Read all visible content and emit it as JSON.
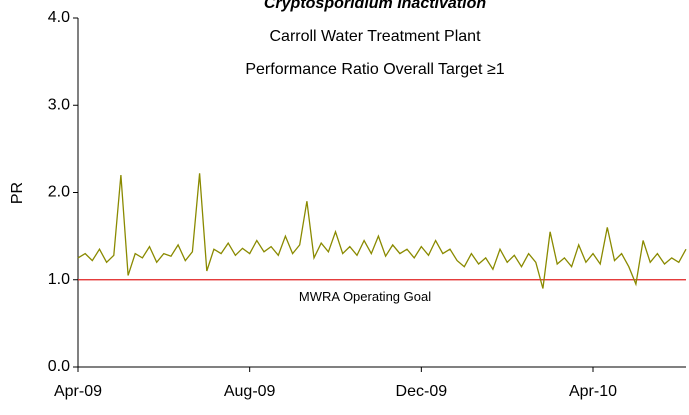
{
  "chart_data": {
    "type": "line",
    "title": "Cryptosporidium Inactivation",
    "subtitle": [
      "Carroll Water Treatment Plant",
      "Performance Ratio Overall Target ≥1"
    ],
    "y_label": "PR",
    "categories": [
      "Apr-09",
      null,
      null,
      null,
      null,
      null,
      null,
      null,
      null,
      null,
      null,
      null,
      null,
      null,
      null,
      null,
      null,
      null,
      null,
      null,
      null,
      null,
      null,
      null,
      "Aug-09",
      null,
      null,
      null,
      null,
      null,
      null,
      null,
      null,
      null,
      null,
      null,
      null,
      null,
      null,
      null,
      null,
      null,
      null,
      null,
      null,
      null,
      null,
      null,
      "Dec-09",
      null,
      null,
      null,
      null,
      null,
      null,
      null,
      null,
      null,
      null,
      null,
      null,
      null,
      null,
      null,
      null,
      null,
      null,
      null,
      null,
      null,
      null,
      null,
      "Apr-10",
      null,
      null,
      null,
      null,
      null,
      null,
      null,
      null,
      null,
      null,
      null,
      null,
      null
    ],
    "values": [
      1.25,
      1.3,
      1.22,
      1.35,
      1.2,
      1.28,
      2.2,
      1.05,
      1.3,
      1.25,
      1.38,
      1.2,
      1.3,
      1.27,
      1.4,
      1.22,
      1.32,
      2.22,
      1.1,
      1.35,
      1.3,
      1.42,
      1.28,
      1.36,
      1.3,
      1.45,
      1.32,
      1.38,
      1.28,
      1.5,
      1.3,
      1.4,
      1.9,
      1.25,
      1.42,
      1.32,
      1.55,
      1.3,
      1.38,
      1.28,
      1.45,
      1.3,
      1.5,
      1.27,
      1.4,
      1.3,
      1.35,
      1.25,
      1.38,
      1.28,
      1.45,
      1.3,
      1.35,
      1.22,
      1.15,
      1.3,
      1.18,
      1.25,
      1.12,
      1.35,
      1.2,
      1.28,
      1.15,
      1.3,
      1.2,
      0.9,
      1.55,
      1.18,
      1.25,
      1.15,
      1.4,
      1.2,
      1.3,
      1.18,
      1.6,
      1.22,
      1.3,
      1.15,
      0.95,
      1.45,
      1.2,
      1.3,
      1.18,
      1.25,
      1.2,
      1.35
    ],
    "color": "#8a8a00",
    "ylim": [
      0,
      4
    ],
    "yticks": [
      {
        "value": 0,
        "label": "0.0"
      },
      {
        "value": 1,
        "label": "1.0"
      },
      {
        "value": 2,
        "label": "2.0"
      },
      {
        "value": 3,
        "label": "3.0"
      },
      {
        "value": 4,
        "label": "4.0"
      }
    ],
    "reference_line": {
      "value": 1,
      "label": "MWRA Operating Goal",
      "color": "#e02020"
    }
  }
}
